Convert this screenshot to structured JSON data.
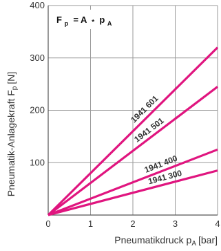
{
  "chart_data": {
    "type": "line",
    "title": "",
    "xlabel": "Pneumatikdruck p",
    "xlabel_sub": "A",
    "xlabel_unit": "[bar]",
    "ylabel": "Pneumatik-Anlagekraft F",
    "ylabel_sub": "p",
    "ylabel_unit": "[N]",
    "xlim": [
      0,
      4
    ],
    "ylim": [
      0,
      400
    ],
    "grid": true,
    "legend": "none",
    "x_ticks": [
      "0",
      "1",
      "2",
      "3",
      "4"
    ],
    "y_ticks": [
      "100",
      "200",
      "300",
      "400"
    ],
    "x_tick_values": [
      0,
      1,
      2,
      3,
      4
    ],
    "y_tick_values": [
      100,
      200,
      300,
      400
    ],
    "annotation": {
      "formula_parts": [
        "F",
        "p",
        " = A ",
        "*",
        " p",
        "A"
      ]
    },
    "line_color": "#e0157f",
    "series": [
      {
        "name": "1941 601",
        "x": [
          0,
          4
        ],
        "y": [
          0,
          320
        ]
      },
      {
        "name": "1941 501",
        "x": [
          0,
          4
        ],
        "y": [
          0,
          245
        ]
      },
      {
        "name": "1941 400",
        "x": [
          0,
          4
        ],
        "y": [
          0,
          125
        ]
      },
      {
        "name": "1941 300",
        "x": [
          0,
          4
        ],
        "y": [
          0,
          85
        ]
      }
    ]
  }
}
